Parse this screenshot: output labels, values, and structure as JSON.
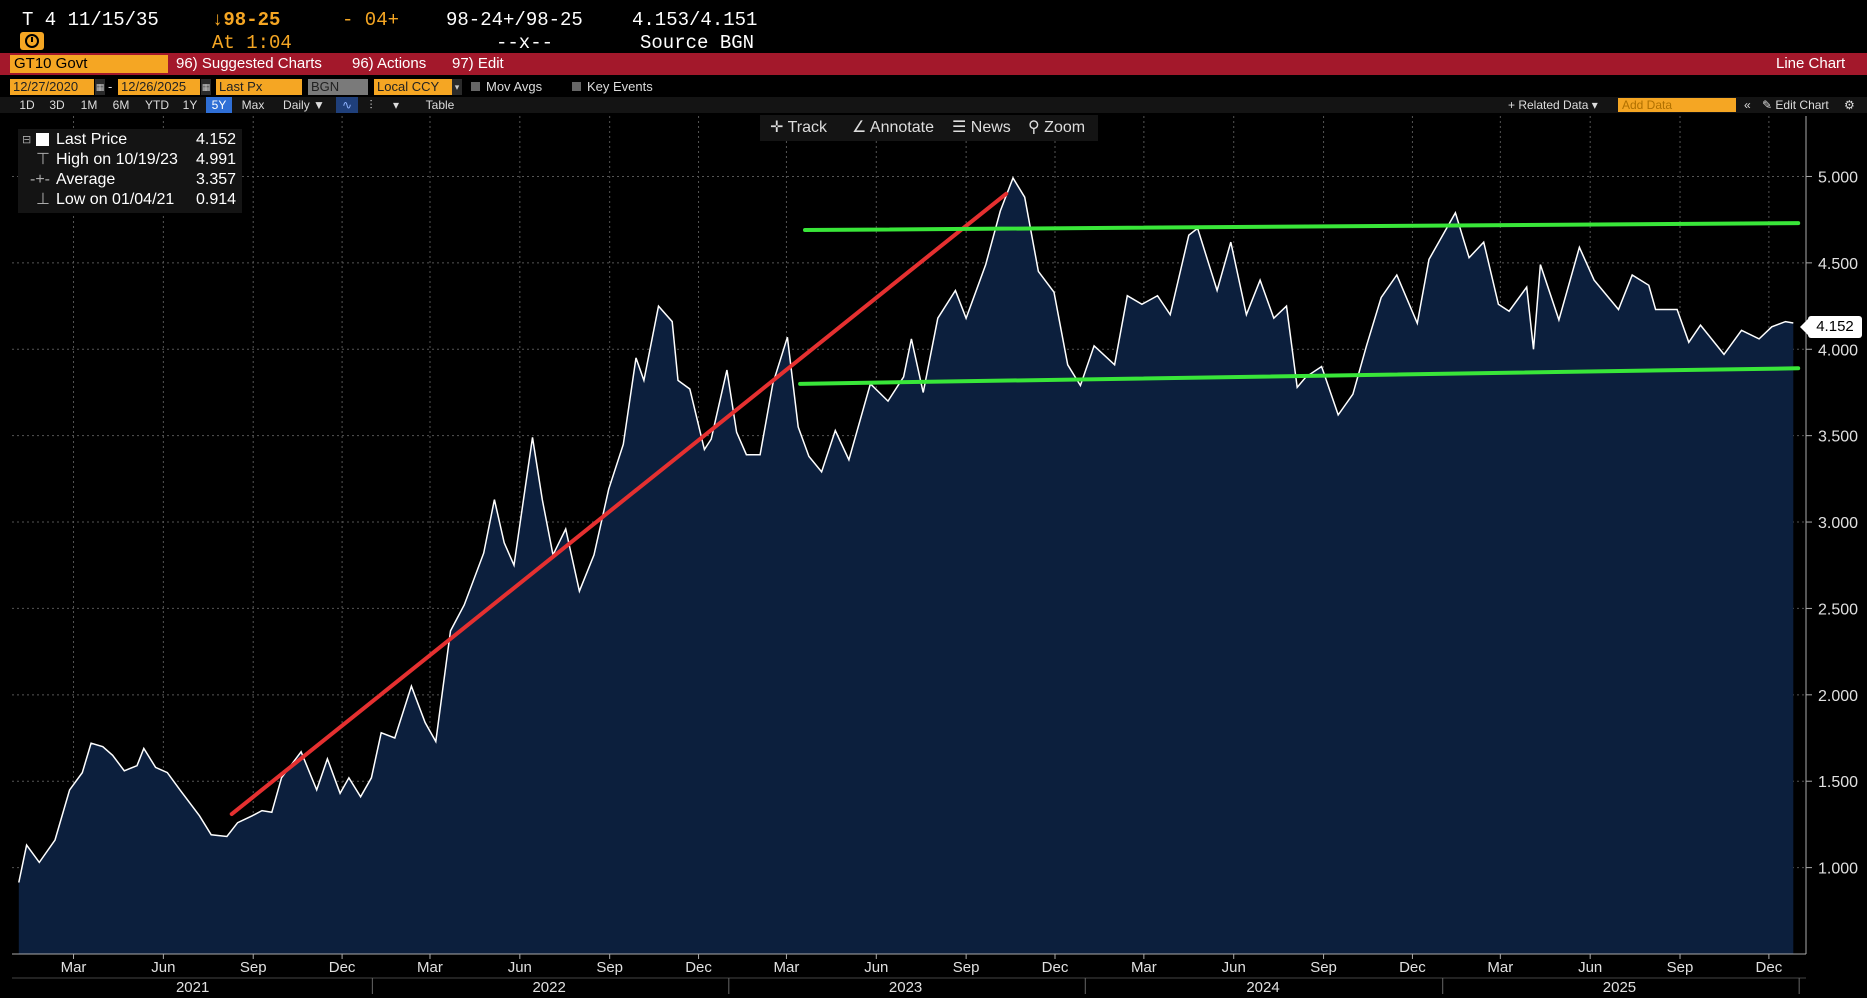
{
  "header": {
    "ticker": "T 4 11/15/35",
    "change_arrow_price": "↓98-25",
    "change": "- 04+",
    "bid_ask_price": "98-24+/98-25",
    "bid_ask_yield": "4.153/4.151",
    "time": "At 1:04",
    "size": "--x--",
    "source": "Source BGN"
  },
  "redbar": {
    "security": "GT10 Govt",
    "suggested": "96) Suggested Charts",
    "actions": "96) Actions",
    "edit": "97) Edit",
    "chart_type": "Line Chart"
  },
  "controls": {
    "start_date": "12/27/2020",
    "end_date": "12/26/2025",
    "field": "Last Px",
    "source": "BGN",
    "currency": "Local CCY",
    "mov_avgs": "Mov Avgs",
    "key_events": "Key Events",
    "periods": [
      "1D",
      "3D",
      "1M",
      "6M",
      "YTD",
      "1Y",
      "5Y",
      "Max"
    ],
    "selected_period": "5Y",
    "frequency": "Daily ▼",
    "table": "Table",
    "related": "+ Related Data ▾",
    "add_data": "Add Data",
    "edit_chart": "Edit Chart"
  },
  "toolbar": {
    "track": "Track",
    "annotate": "Annotate",
    "news": "News",
    "zoom": "Zoom"
  },
  "legend": {
    "last_label": "Last Price",
    "last_value": "4.152",
    "high_label": "High on 10/19/23",
    "high_value": "4.991",
    "avg_label": "Average",
    "avg_value": "3.357",
    "low_label": "Low on 01/04/21",
    "low_value": "0.914"
  },
  "current_price_tag": "4.152",
  "colors": {
    "accent": "#f5a623",
    "bar": "#a3182b",
    "fill": "#0c1f3d",
    "line": "#ffffff",
    "trend_red": "#e53030",
    "trend_green": "#39e639"
  },
  "chart_data": {
    "type": "area",
    "title": "GT10 Govt Last Price",
    "ylim": [
      0.5,
      5.35
    ],
    "yticks": [
      1.0,
      1.5,
      2.0,
      2.5,
      3.0,
      3.5,
      4.0,
      4.5,
      5.0
    ],
    "ytick_labels": [
      "1.000",
      "1.500",
      "2.000",
      "2.500",
      "3.000",
      "3.500",
      "4.000",
      "4.500",
      "5.000"
    ],
    "x_start": "2020-12-28",
    "x_end": "2026-01-08",
    "month_ticks": [
      {
        "label": "Mar",
        "date": "2021-03-01"
      },
      {
        "label": "Jun",
        "date": "2021-06-01"
      },
      {
        "label": "Sep",
        "date": "2021-09-01"
      },
      {
        "label": "Dec",
        "date": "2021-12-01"
      },
      {
        "label": "Mar",
        "date": "2022-03-01"
      },
      {
        "label": "Jun",
        "date": "2022-06-01"
      },
      {
        "label": "Sep",
        "date": "2022-09-01"
      },
      {
        "label": "Dec",
        "date": "2022-12-01"
      },
      {
        "label": "Mar",
        "date": "2023-03-01"
      },
      {
        "label": "Jun",
        "date": "2023-06-01"
      },
      {
        "label": "Sep",
        "date": "2023-09-01"
      },
      {
        "label": "Dec",
        "date": "2023-12-01"
      },
      {
        "label": "Mar",
        "date": "2024-03-01"
      },
      {
        "label": "Jun",
        "date": "2024-06-01"
      },
      {
        "label": "Sep",
        "date": "2024-09-01"
      },
      {
        "label": "Dec",
        "date": "2024-12-01"
      },
      {
        "label": "Mar",
        "date": "2025-03-01"
      },
      {
        "label": "Jun",
        "date": "2025-06-01"
      },
      {
        "label": "Sep",
        "date": "2025-09-01"
      },
      {
        "label": "Dec",
        "date": "2025-12-01"
      }
    ],
    "year_labels": [
      {
        "label": "2021",
        "date": "2021-07-01"
      },
      {
        "label": "2022",
        "date": "2022-07-01"
      },
      {
        "label": "2023",
        "date": "2023-07-01"
      },
      {
        "label": "2024",
        "date": "2024-07-01"
      },
      {
        "label": "2025",
        "date": "2025-07-01"
      }
    ],
    "year_separators": [
      "2022-01-01",
      "2023-01-01",
      "2024-01-01",
      "2025-01-01",
      "2026-01-01"
    ],
    "series": [
      {
        "name": "Last Price",
        "points": [
          [
            "2021-01-04",
            0.914
          ],
          [
            "2021-01-12",
            1.13
          ],
          [
            "2021-01-25",
            1.03
          ],
          [
            "2021-02-10",
            1.16
          ],
          [
            "2021-02-25",
            1.45
          ],
          [
            "2021-03-10",
            1.55
          ],
          [
            "2021-03-19",
            1.72
          ],
          [
            "2021-03-31",
            1.7
          ],
          [
            "2021-04-10",
            1.65
          ],
          [
            "2021-04-22",
            1.56
          ],
          [
            "2021-05-05",
            1.59
          ],
          [
            "2021-05-12",
            1.69
          ],
          [
            "2021-05-24",
            1.58
          ],
          [
            "2021-06-05",
            1.55
          ],
          [
            "2021-06-18",
            1.45
          ],
          [
            "2021-07-08",
            1.3
          ],
          [
            "2021-07-20",
            1.19
          ],
          [
            "2021-08-05",
            1.18
          ],
          [
            "2021-08-16",
            1.26
          ],
          [
            "2021-08-31",
            1.3
          ],
          [
            "2021-09-10",
            1.33
          ],
          [
            "2021-09-20",
            1.32
          ],
          [
            "2021-09-30",
            1.52
          ],
          [
            "2021-10-20",
            1.67
          ],
          [
            "2021-11-05",
            1.45
          ],
          [
            "2021-11-16",
            1.63
          ],
          [
            "2021-11-29",
            1.43
          ],
          [
            "2021-12-08",
            1.52
          ],
          [
            "2021-12-20",
            1.41
          ],
          [
            "2021-12-31",
            1.52
          ],
          [
            "2022-01-10",
            1.78
          ],
          [
            "2022-01-24",
            1.75
          ],
          [
            "2022-02-10",
            2.05
          ],
          [
            "2022-02-24",
            1.84
          ],
          [
            "2022-03-07",
            1.73
          ],
          [
            "2022-03-22",
            2.37
          ],
          [
            "2022-04-05",
            2.52
          ],
          [
            "2022-04-25",
            2.82
          ],
          [
            "2022-05-06",
            3.13
          ],
          [
            "2022-05-16",
            2.88
          ],
          [
            "2022-05-26",
            2.75
          ],
          [
            "2022-06-14",
            3.49
          ],
          [
            "2022-06-24",
            3.13
          ],
          [
            "2022-07-05",
            2.81
          ],
          [
            "2022-07-18",
            2.96
          ],
          [
            "2022-08-01",
            2.6
          ],
          [
            "2022-08-16",
            2.81
          ],
          [
            "2022-08-31",
            3.19
          ],
          [
            "2022-09-15",
            3.45
          ],
          [
            "2022-09-28",
            3.95
          ],
          [
            "2022-10-06",
            3.82
          ],
          [
            "2022-10-21",
            4.25
          ],
          [
            "2022-11-04",
            4.16
          ],
          [
            "2022-11-10",
            3.82
          ],
          [
            "2022-11-22",
            3.77
          ],
          [
            "2022-12-07",
            3.42
          ],
          [
            "2022-12-14",
            3.48
          ],
          [
            "2022-12-30",
            3.88
          ],
          [
            "2023-01-09",
            3.52
          ],
          [
            "2023-01-19",
            3.39
          ],
          [
            "2023-02-02",
            3.39
          ],
          [
            "2023-02-15",
            3.8
          ],
          [
            "2023-03-02",
            4.07
          ],
          [
            "2023-03-13",
            3.55
          ],
          [
            "2023-03-24",
            3.38
          ],
          [
            "2023-04-06",
            3.29
          ],
          [
            "2023-04-20",
            3.53
          ],
          [
            "2023-05-04",
            3.36
          ],
          [
            "2023-05-26",
            3.8
          ],
          [
            "2023-06-13",
            3.7
          ],
          [
            "2023-06-29",
            3.84
          ],
          [
            "2023-07-07",
            4.06
          ],
          [
            "2023-07-19",
            3.75
          ],
          [
            "2023-08-03",
            4.18
          ],
          [
            "2023-08-21",
            4.34
          ],
          [
            "2023-09-01",
            4.18
          ],
          [
            "2023-09-21",
            4.49
          ],
          [
            "2023-10-06",
            4.8
          ],
          [
            "2023-10-19",
            4.991
          ],
          [
            "2023-10-31",
            4.88
          ],
          [
            "2023-11-14",
            4.45
          ],
          [
            "2023-11-30",
            4.33
          ],
          [
            "2023-12-14",
            3.91
          ],
          [
            "2023-12-27",
            3.79
          ],
          [
            "2024-01-10",
            4.02
          ],
          [
            "2024-01-31",
            3.91
          ],
          [
            "2024-02-13",
            4.31
          ],
          [
            "2024-02-28",
            4.26
          ],
          [
            "2024-03-15",
            4.31
          ],
          [
            "2024-03-28",
            4.2
          ],
          [
            "2024-04-16",
            4.66
          ],
          [
            "2024-04-25",
            4.7
          ],
          [
            "2024-05-15",
            4.34
          ],
          [
            "2024-05-29",
            4.62
          ],
          [
            "2024-06-14",
            4.2
          ],
          [
            "2024-06-28",
            4.4
          ],
          [
            "2024-07-12",
            4.18
          ],
          [
            "2024-07-25",
            4.25
          ],
          [
            "2024-08-05",
            3.78
          ],
          [
            "2024-08-14",
            3.84
          ],
          [
            "2024-08-30",
            3.9
          ],
          [
            "2024-09-16",
            3.62
          ],
          [
            "2024-10-01",
            3.74
          ],
          [
            "2024-10-15",
            4.02
          ],
          [
            "2024-10-30",
            4.3
          ],
          [
            "2024-11-15",
            4.43
          ],
          [
            "2024-12-06",
            4.15
          ],
          [
            "2024-12-18",
            4.52
          ],
          [
            "2025-01-14",
            4.79
          ],
          [
            "2025-01-28",
            4.53
          ],
          [
            "2025-02-12",
            4.62
          ],
          [
            "2025-02-27",
            4.26
          ],
          [
            "2025-03-10",
            4.22
          ],
          [
            "2025-03-28",
            4.36
          ],
          [
            "2025-04-04",
            4.0
          ],
          [
            "2025-04-11",
            4.49
          ],
          [
            "2025-04-30",
            4.17
          ],
          [
            "2025-05-21",
            4.59
          ],
          [
            "2025-06-05",
            4.4
          ],
          [
            "2025-06-30",
            4.23
          ],
          [
            "2025-07-14",
            4.43
          ],
          [
            "2025-07-31",
            4.37
          ],
          [
            "2025-08-07",
            4.23
          ],
          [
            "2025-08-29",
            4.23
          ],
          [
            "2025-09-10",
            4.04
          ],
          [
            "2025-09-22",
            4.14
          ],
          [
            "2025-10-16",
            3.97
          ],
          [
            "2025-11-03",
            4.11
          ],
          [
            "2025-11-21",
            4.06
          ],
          [
            "2025-12-04",
            4.13
          ],
          [
            "2025-12-18",
            4.16
          ],
          [
            "2025-12-26",
            4.152
          ]
        ]
      }
    ],
    "trendlines": [
      {
        "name": "uptrend",
        "color": "red",
        "from": [
          "2021-08-10",
          1.31
        ],
        "to": [
          "2023-10-12",
          4.9
        ]
      },
      {
        "name": "resistance",
        "color": "green",
        "from": [
          "2023-03-20",
          4.69
        ],
        "to": [
          "2025-12-31",
          4.73
        ]
      },
      {
        "name": "support",
        "color": "green",
        "from": [
          "2023-03-15",
          3.8
        ],
        "to": [
          "2025-12-31",
          3.89
        ]
      }
    ]
  }
}
